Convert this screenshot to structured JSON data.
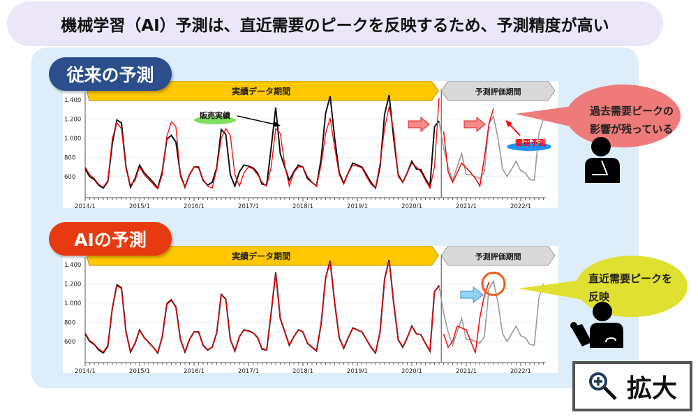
{
  "title": "機械学習（AI）予測は、直近需要のピークを反映するため、予測精度が高い",
  "panels": [
    {
      "badge": "従来の予測",
      "badge_color": "#2b4f8c"
    },
    {
      "badge": "AIの予測",
      "badge_color": "#e83a10"
    }
  ],
  "banners": {
    "actual_period": "実績データ期間",
    "eval_period": "予測評価期間"
  },
  "annotations": {
    "sales_actual": "販売実績",
    "demand_forecast": "需要予測",
    "bubble_top": [
      "過去需要ピークの",
      "影響が残っている"
    ],
    "bubble_bottom": [
      "直近需要ピークを",
      "反映"
    ]
  },
  "zoom_button": {
    "label": "拡大",
    "icon": "zoom-in-icon"
  },
  "colors": {
    "actual": "#111111",
    "actual_eval": "#999999",
    "forecast": "#ff0000",
    "banner_yellow": "#ffc800",
    "banner_gray": "#d9d9d9"
  },
  "chart_data": [
    {
      "type": "line",
      "x_start": "2014/1",
      "x_step": "month",
      "x_ticks": [
        "2014/1",
        "2015/1",
        "2016/1",
        "2017/1",
        "2018/1",
        "2019/1",
        "2020/1",
        "2021/1",
        "2022/1"
      ],
      "y_ticks": [
        "600",
        "800",
        "1.000",
        "1.200",
        "1.400"
      ],
      "ylim": [
        380,
        1480
      ],
      "grid": true,
      "eval_start": "2020/8",
      "series": [
        {
          "name": "販売実績",
          "values": [
            680,
            600,
            570,
            510,
            480,
            550,
            950,
            1190,
            1160,
            700,
            490,
            580,
            720,
            640,
            590,
            540,
            480,
            650,
            990,
            1030,
            960,
            620,
            490,
            620,
            700,
            700,
            560,
            510,
            540,
            690,
            1090,
            1040,
            620,
            500,
            650,
            720,
            710,
            690,
            640,
            520,
            510,
            900,
            1320,
            840,
            700,
            560,
            650,
            720,
            700,
            580,
            540,
            500,
            780,
            1260,
            1440,
            1000,
            640,
            530,
            640,
            740,
            720,
            700,
            620,
            540,
            480,
            700,
            1250,
            1450,
            1000,
            620,
            540,
            640,
            760,
            680,
            670,
            580,
            500,
            1120,
            1180,
            900,
            700,
            560,
            700,
            840,
            620,
            620,
            600,
            580,
            650,
            1150,
            1230,
            1000,
            680,
            600,
            680,
            760,
            660,
            640,
            570,
            560,
            1050,
            1200
          ]
        },
        {
          "name": "需要予測",
          "values": [
            700,
            620,
            580,
            520,
            490,
            560,
            1000,
            1160,
            1100,
            680,
            510,
            560,
            700,
            620,
            570,
            520,
            470,
            620,
            1020,
            1170,
            1120,
            600,
            490,
            620,
            700,
            690,
            570,
            500,
            480,
            680,
            1000,
            1100,
            1030,
            620,
            500,
            640,
            700,
            680,
            620,
            540,
            500,
            700,
            1100,
            1050,
            720,
            500,
            640,
            700,
            700,
            600,
            540,
            500,
            720,
            1050,
            1210,
            900,
            620,
            520,
            640,
            720,
            710,
            690,
            600,
            520,
            480,
            740,
            1100,
            1330,
            1080,
            600,
            540,
            640,
            740,
            700,
            650,
            560,
            480,
            700,
            1420,
            1070,
            650,
            540,
            640,
            740,
            690,
            640,
            580,
            500,
            800,
            1150,
            1310
          ]
        }
      ]
    },
    {
      "type": "line",
      "x_start": "2014/1",
      "x_step": "month",
      "x_ticks": [
        "2014/1",
        "2015/1",
        "2016/1",
        "2017/1",
        "2018/1",
        "2019/1",
        "2020/1",
        "2021/1",
        "2022/1"
      ],
      "y_ticks": [
        "600",
        "800",
        "1.000",
        "1.200",
        "1.400"
      ],
      "ylim": [
        380,
        1480
      ],
      "grid": true,
      "eval_start": "2020/8",
      "series": [
        {
          "name": "販売実績",
          "values": [
            680,
            600,
            570,
            510,
            480,
            550,
            950,
            1190,
            1160,
            700,
            490,
            580,
            720,
            640,
            590,
            540,
            480,
            650,
            990,
            1030,
            960,
            620,
            490,
            620,
            700,
            700,
            560,
            510,
            540,
            690,
            1090,
            1040,
            620,
            500,
            650,
            720,
            710,
            690,
            640,
            520,
            510,
            900,
            1320,
            840,
            700,
            560,
            650,
            720,
            700,
            580,
            540,
            500,
            780,
            1260,
            1440,
            1000,
            640,
            530,
            640,
            740,
            720,
            700,
            620,
            540,
            480,
            700,
            1250,
            1450,
            1000,
            620,
            540,
            640,
            760,
            680,
            670,
            580,
            500,
            1120,
            1180,
            900,
            700,
            560,
            700,
            840,
            620,
            620,
            600,
            580,
            650,
            1150,
            1230,
            1000,
            680,
            600,
            680,
            760,
            660,
            640,
            570,
            560,
            1050,
            1200
          ]
        },
        {
          "name": "AI予測",
          "values": [
            690,
            610,
            575,
            520,
            490,
            560,
            960,
            1180,
            1150,
            690,
            500,
            585,
            715,
            640,
            585,
            540,
            485,
            650,
            1000,
            1040,
            950,
            615,
            495,
            620,
            700,
            695,
            565,
            515,
            540,
            690,
            1085,
            1035,
            625,
            505,
            650,
            715,
            705,
            690,
            635,
            525,
            515,
            905,
            1310,
            845,
            700,
            565,
            650,
            720,
            700,
            585,
            545,
            505,
            790,
            1255,
            1430,
            1000,
            645,
            535,
            645,
            735,
            720,
            700,
            620,
            545,
            485,
            705,
            1245,
            1440,
            1000,
            625,
            545,
            640,
            755,
            680,
            670,
            580,
            505,
            1115,
            1190,
            680,
            540,
            600,
            760,
            740,
            720,
            600,
            480,
            850,
            1080,
            1220
          ]
        }
      ]
    }
  ]
}
